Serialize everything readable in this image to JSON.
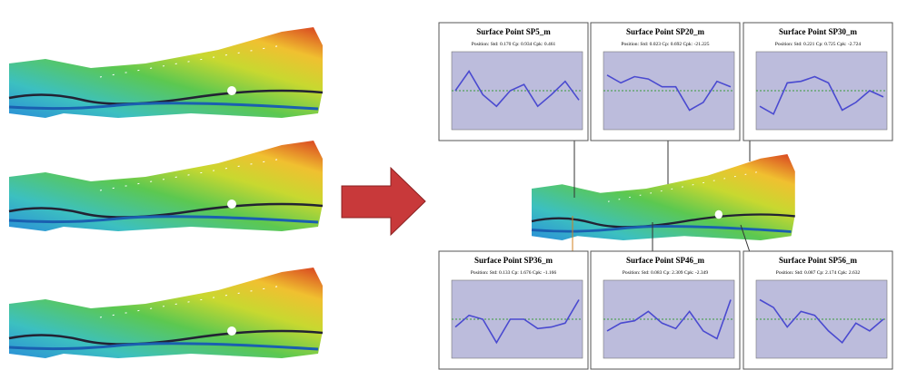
{
  "chart_data": [
    {
      "type": "line",
      "title": "Surface Point SP5_m",
      "subtitle": "Position: Std: 0.170 Cp: 0.934 Cpk: 0.461",
      "categories": [
        null,
        null,
        null,
        null,
        null,
        null,
        null,
        null,
        null,
        null
      ],
      "values": [
        0.5,
        0.75,
        0.45,
        0.3,
        0.5,
        0.58,
        0.3,
        0.45,
        0.62,
        0.38
      ],
      "ylim": [
        0,
        1
      ],
      "reference": 0.5,
      "color": "#4a4ad0"
    },
    {
      "type": "line",
      "title": "Surface Point SP20_m",
      "subtitle": "Position: Std: 0.023 Cp: 0.692 Cpk: -21.225",
      "categories": [
        null,
        null,
        null,
        null,
        null,
        null,
        null,
        null,
        null,
        null
      ],
      "values": [
        0.7,
        0.6,
        0.68,
        0.65,
        0.55,
        0.55,
        0.25,
        0.35,
        0.62,
        0.55
      ],
      "ylim": [
        0,
        1
      ],
      "reference": 0.5,
      "color": "#4a4ad0"
    },
    {
      "type": "line",
      "title": "Surface Point SP30_m",
      "subtitle": "Position: Std: 0.221 Cp: 0.725 Cpk: -2.724",
      "categories": [
        null,
        null,
        null,
        null,
        null,
        null,
        null,
        null,
        null,
        null
      ],
      "values": [
        0.3,
        0.2,
        0.6,
        0.62,
        0.68,
        0.6,
        0.25,
        0.35,
        0.5,
        0.42
      ],
      "ylim": [
        0,
        1
      ],
      "reference": 0.5,
      "color": "#4a4ad0"
    },
    {
      "type": "line",
      "title": "Surface Point SP36_m",
      "subtitle": "Position: Std: 0.133 Cp: 1.676 Cpk: -1.166",
      "categories": [
        null,
        null,
        null,
        null,
        null,
        null,
        null,
        null,
        null,
        null
      ],
      "values": [
        0.4,
        0.55,
        0.5,
        0.2,
        0.5,
        0.5,
        0.38,
        0.4,
        0.45,
        0.75
      ],
      "ylim": [
        0,
        1
      ],
      "reference": 0.5,
      "color": "#4a4ad0"
    },
    {
      "type": "line",
      "title": "Surface Point SP46_m",
      "subtitle": "Position: Std: 0.083 Cp: 2.309 Cpk: -2.349",
      "categories": [
        null,
        null,
        null,
        null,
        null,
        null,
        null,
        null,
        null,
        null
      ],
      "values": [
        0.35,
        0.45,
        0.48,
        0.6,
        0.45,
        0.38,
        0.6,
        0.35,
        0.25,
        0.75
      ],
      "ylim": [
        0,
        1
      ],
      "reference": 0.5,
      "color": "#4a4ad0"
    },
    {
      "type": "line",
      "title": "Surface Point SP56_m",
      "subtitle": "Position: Std: 0.087 Cp: 2.174 Cpk: 2.632",
      "categories": [
        null,
        null,
        null,
        null,
        null,
        null,
        null,
        null,
        null,
        null
      ],
      "values": [
        0.75,
        0.65,
        0.4,
        0.6,
        0.55,
        0.35,
        0.2,
        0.45,
        0.35,
        0.5
      ],
      "ylim": [
        0,
        1
      ],
      "reference": 0.5,
      "color": "#4a4ad0"
    }
  ]
}
